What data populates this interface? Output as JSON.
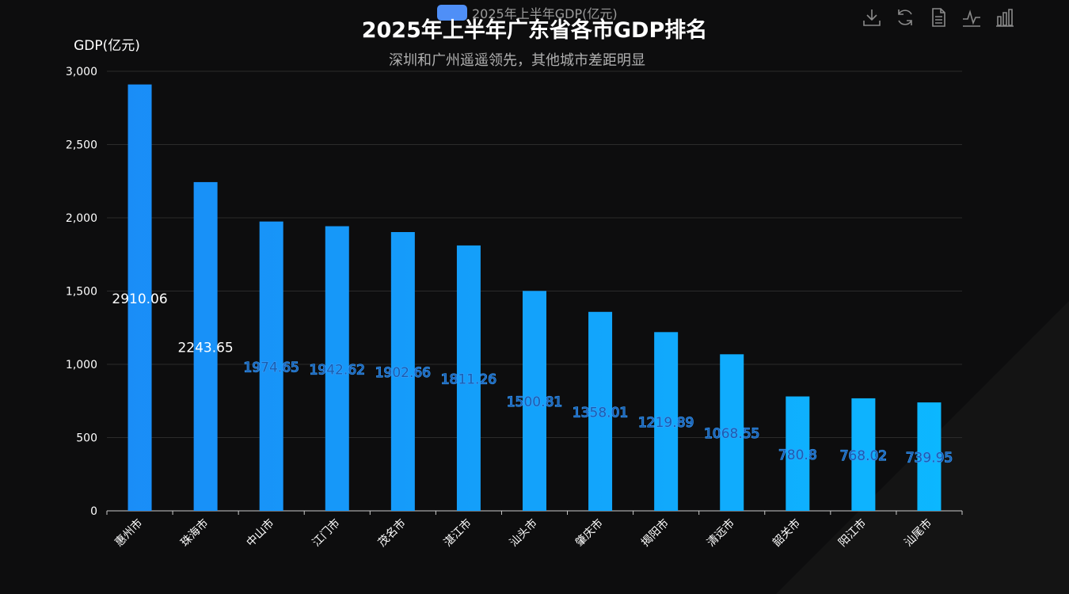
{
  "legend": {
    "label": "2025年上半年GDP(亿元)",
    "color": "#4f8ff7"
  },
  "title": "2025年上半年广东省各市GDP排名",
  "subtitle": "深圳和广州遥遥领先，其他城市差距明显",
  "toolbox": [
    {
      "name": "download-icon"
    },
    {
      "name": "refresh-icon"
    },
    {
      "name": "data-view-icon"
    },
    {
      "name": "line-chart-icon"
    },
    {
      "name": "bar-chart-icon"
    }
  ],
  "colors": {
    "background": "#0d0d0e",
    "bar_top": "#1a8cf7",
    "bar_bottom": "#0cb8ff",
    "label_inside": "#ffffff",
    "label_fill": "#1a5fb0",
    "label_stroke": "#3aa0ff",
    "grid": "#2b2b2b",
    "axis": "#cccccc"
  },
  "chart_data": {
    "type": "bar",
    "ylabel": "GDP(亿元)",
    "ylim": [
      0,
      3000
    ],
    "yticks": [
      0,
      500,
      1000,
      1500,
      2000,
      2500,
      3000
    ],
    "ytick_labels": [
      "0",
      "500",
      "1,000",
      "1,500",
      "2,000",
      "2,500",
      "3,000"
    ],
    "grid": true,
    "categories": [
      "惠州市",
      "珠海市",
      "中山市",
      "江门市",
      "茂名市",
      "湛江市",
      "汕头市",
      "肇庆市",
      "揭阳市",
      "清远市",
      "韶关市",
      "阳江市",
      "汕尾市"
    ],
    "series": [
      {
        "name": "2025年上半年GDP(亿元)",
        "values": [
          2910.06,
          2243.65,
          1974.65,
          1942.62,
          1902.66,
          1811.26,
          1500.81,
          1358.01,
          1219.89,
          1068.55,
          780.8,
          768.02,
          739.95
        ],
        "labels": [
          "2910.06",
          "2243.65",
          "1974.65",
          "1942.62",
          "1902.66",
          "1811.26",
          "1500.81",
          "1358.01",
          "1219.89",
          "1068.55",
          "780.8",
          "768.02",
          "739.95"
        ]
      }
    ]
  }
}
